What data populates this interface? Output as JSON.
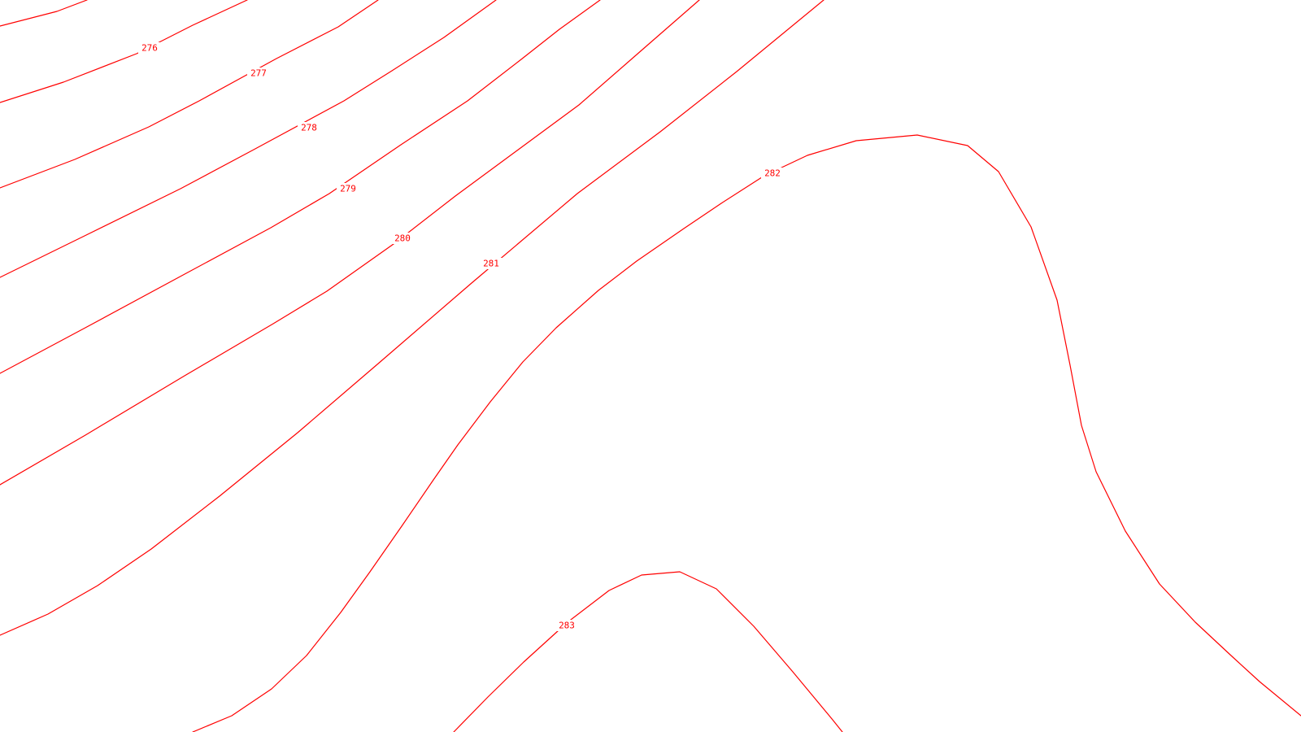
{
  "map": {
    "line_color": "#ff0000",
    "background_color": "#ffffff",
    "contour_levels": [
      {
        "level": 276,
        "label": "276"
      },
      {
        "level": 277,
        "label": "277"
      },
      {
        "level": 278,
        "label": "278"
      },
      {
        "level": 279,
        "label": "279"
      },
      {
        "level": 280,
        "label": "280"
      },
      {
        "level": 281,
        "label": "281"
      },
      {
        "level": 282,
        "label": "282"
      },
      {
        "level": 283,
        "label": "283"
      }
    ]
  }
}
